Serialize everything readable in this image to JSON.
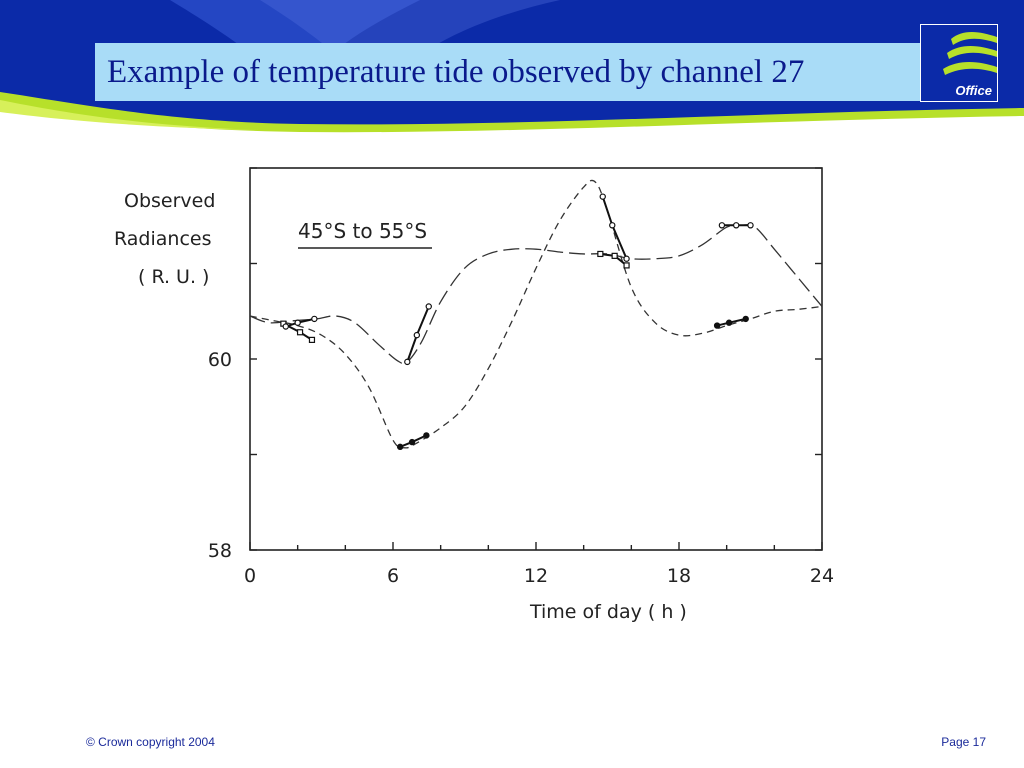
{
  "slide": {
    "title": "Example of temperature tide observed by channel 27",
    "logo_text": "Office",
    "footer_left": "© Crown copyright 2004",
    "footer_right": "Page 17"
  },
  "colors": {
    "header_blue": "#0b2aa8",
    "banner_light": "#3a5cd8",
    "accent_green": "#b7e02a",
    "title_background": "#a9dcf7",
    "title_text": "#0a1a8c",
    "footer_text": "#1a2a9a"
  },
  "chart_data": {
    "type": "line",
    "title": "",
    "annotation": "45°S to 55°S",
    "ylabel_lines": [
      "Observed",
      "Radiances",
      "( R. U. )"
    ],
    "xlabel": "Time of day ( h )",
    "xlim": [
      0,
      24
    ],
    "ylim": [
      58,
      62
    ],
    "xticks": [
      0,
      6,
      12,
      18,
      24
    ],
    "xtick_labels": [
      "0",
      "6",
      "12",
      "18",
      "24"
    ],
    "yticks": [
      58,
      60
    ],
    "ytick_labels": [
      "58",
      "60"
    ],
    "grid": false,
    "series": [
      {
        "style": "long-dash",
        "x": [
          0,
          0.8,
          1.8,
          2.8,
          3.6,
          4.4,
          5.4,
          6.2,
          6.6,
          7.2,
          8,
          9,
          10,
          11,
          12,
          13,
          14,
          15,
          16,
          17,
          18,
          19,
          20,
          20.6,
          21.2,
          22,
          23,
          24
        ],
        "y": [
          60.45,
          60.38,
          60.4,
          60.42,
          60.45,
          60.38,
          60.15,
          59.98,
          59.97,
          60.18,
          60.6,
          60.95,
          61.1,
          61.15,
          61.15,
          61.12,
          61.1,
          61.1,
          61.05,
          61.05,
          61.08,
          61.2,
          61.38,
          61.4,
          61.38,
          61.15,
          60.85,
          60.55
        ]
      },
      {
        "style": "short-dash",
        "x": [
          0,
          1,
          2,
          3,
          4,
          5,
          6,
          6.5,
          7,
          8,
          9,
          10,
          11,
          12,
          13,
          14,
          14.5,
          15,
          16,
          17,
          18,
          19,
          20,
          21,
          22,
          23,
          24
        ],
        "y": [
          60.45,
          60.4,
          60.35,
          60.25,
          60.05,
          59.7,
          59.15,
          59.07,
          59.12,
          59.28,
          59.5,
          59.9,
          60.4,
          60.95,
          61.45,
          61.8,
          61.85,
          61.55,
          60.75,
          60.38,
          60.25,
          60.27,
          60.35,
          60.42,
          60.5,
          60.52,
          60.55
        ]
      }
    ],
    "observations": [
      {
        "marker": "open-square",
        "x": [
          1.4,
          2.1,
          2.6
        ],
        "y": [
          60.37,
          60.28,
          60.2
        ]
      },
      {
        "marker": "open-circle",
        "x": [
          1.5,
          2.0,
          2.7
        ],
        "y": [
          60.34,
          60.38,
          60.42
        ]
      },
      {
        "marker": "open-circle",
        "x": [
          6.6,
          7.0,
          7.5
        ],
        "y": [
          59.97,
          60.25,
          60.55
        ]
      },
      {
        "marker": "filled-circle",
        "x": [
          6.3,
          6.8,
          7.4
        ],
        "y": [
          59.08,
          59.13,
          59.2
        ]
      },
      {
        "marker": "open-circle",
        "x": [
          14.8,
          15.2,
          15.8
        ],
        "y": [
          61.7,
          61.4,
          61.05
        ]
      },
      {
        "marker": "open-square",
        "x": [
          14.7,
          15.3,
          15.8
        ],
        "y": [
          61.1,
          61.08,
          60.98
        ]
      },
      {
        "marker": "open-circle",
        "x": [
          19.8,
          20.4,
          21.0
        ],
        "y": [
          61.4,
          61.4,
          61.4
        ]
      },
      {
        "marker": "filled-circle",
        "x": [
          19.6,
          20.1,
          20.8
        ],
        "y": [
          60.35,
          60.38,
          60.42
        ]
      }
    ]
  }
}
